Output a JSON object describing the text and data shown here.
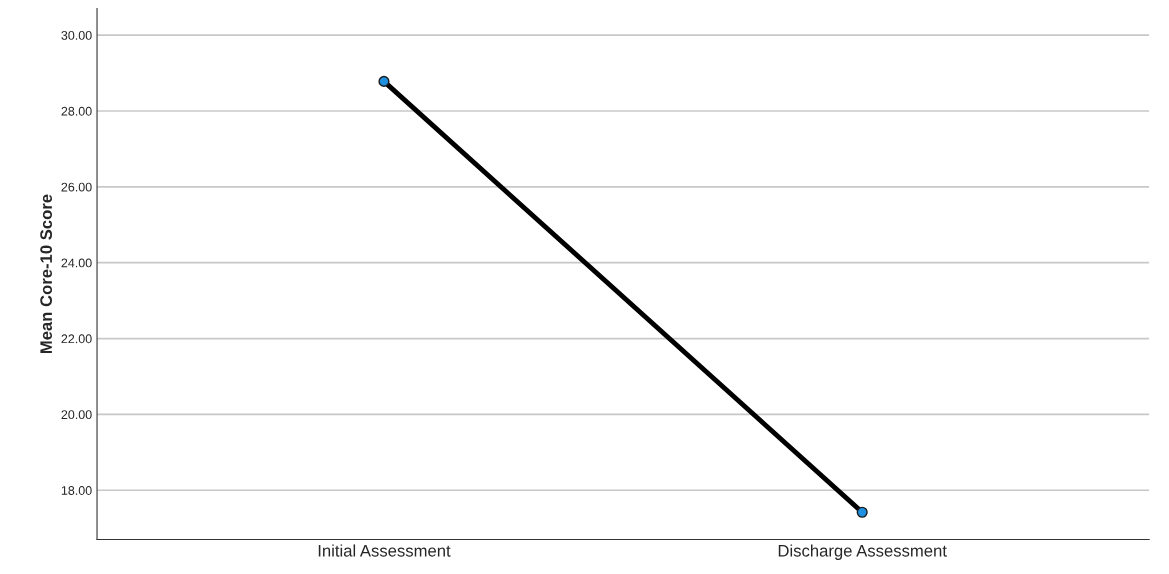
{
  "chart_data": {
    "type": "line",
    "ylabel": "Mean Core-10 Score",
    "categories": [
      "Initial Assessment",
      "Discharge Assessment"
    ],
    "series": [
      {
        "color": "#000000",
        "values": [
          28.78,
          17.42
        ]
      }
    ],
    "ylim": [
      16.7,
      30.7
    ],
    "yticks": [
      {
        "value": 18,
        "label": "18.00"
      },
      {
        "value": 20,
        "label": "20.00"
      },
      {
        "value": 22,
        "label": "22.00"
      },
      {
        "value": 24,
        "label": "24.00"
      },
      {
        "value": 26,
        "label": "26.00"
      },
      {
        "value": 28,
        "label": "28.00"
      },
      {
        "value": 30,
        "label": "30.00"
      }
    ],
    "grid": "y",
    "marker": "circle",
    "line_style": "solid"
  }
}
